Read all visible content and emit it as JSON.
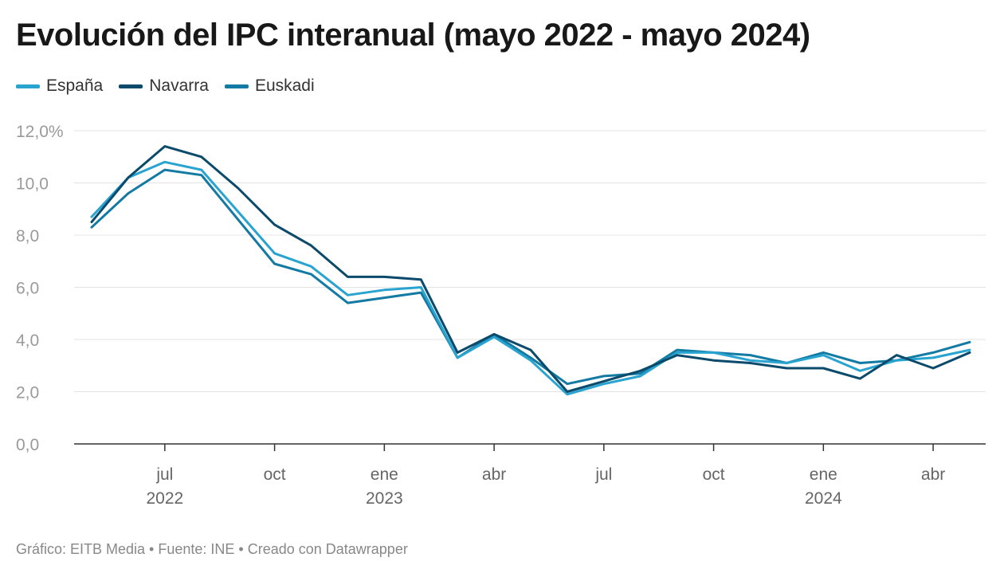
{
  "chart_data": {
    "type": "line",
    "title": "Evolución del IPC interanual (mayo 2022 - mayo 2024)",
    "xlabel": "",
    "ylabel": "",
    "ylim": [
      0,
      12
    ],
    "y_ticks": [
      "0,0",
      "2,0",
      "4,0",
      "6,0",
      "8,0",
      "10,0",
      "12,0%"
    ],
    "y_tick_values": [
      0,
      2,
      4,
      6,
      8,
      10,
      12
    ],
    "x": [
      "2022-05",
      "2022-06",
      "2022-07",
      "2022-08",
      "2022-09",
      "2022-10",
      "2022-11",
      "2022-12",
      "2023-01",
      "2023-02",
      "2023-03",
      "2023-04",
      "2023-05",
      "2023-06",
      "2023-07",
      "2023-08",
      "2023-09",
      "2023-10",
      "2023-11",
      "2023-12",
      "2024-01",
      "2024-02",
      "2024-03",
      "2024-04",
      "2024-05"
    ],
    "x_ticks": [
      {
        "index": 2,
        "label": "jul",
        "year": "2022"
      },
      {
        "index": 5,
        "label": "oct",
        "year": ""
      },
      {
        "index": 8,
        "label": "ene",
        "year": "2023"
      },
      {
        "index": 11,
        "label": "abr",
        "year": ""
      },
      {
        "index": 14,
        "label": "jul",
        "year": ""
      },
      {
        "index": 17,
        "label": "oct",
        "year": ""
      },
      {
        "index": 20,
        "label": "ene",
        "year": "2024"
      },
      {
        "index": 23,
        "label": "abr",
        "year": ""
      }
    ],
    "grid": true,
    "legend_position": "top-left",
    "series": [
      {
        "name": "España",
        "color": "#29a3cf",
        "values": [
          8.7,
          10.2,
          10.8,
          10.5,
          8.9,
          7.3,
          6.8,
          5.7,
          5.9,
          6.0,
          3.3,
          4.1,
          3.2,
          1.9,
          2.3,
          2.6,
          3.5,
          3.5,
          3.2,
          3.1,
          3.4,
          2.8,
          3.2,
          3.3,
          3.6
        ]
      },
      {
        "name": "Navarra",
        "color": "#0b4a6b",
        "values": [
          8.5,
          10.2,
          11.4,
          11.0,
          9.8,
          8.4,
          7.6,
          6.4,
          6.4,
          6.3,
          3.5,
          4.2,
          3.6,
          2.0,
          2.4,
          2.8,
          3.4,
          3.2,
          3.1,
          2.9,
          2.9,
          2.5,
          3.4,
          2.9,
          3.5
        ]
      },
      {
        "name": "Euskadi",
        "color": "#137aa3",
        "values": [
          8.3,
          9.6,
          10.5,
          10.3,
          8.6,
          6.9,
          6.5,
          5.4,
          5.6,
          5.8,
          3.3,
          4.2,
          3.3,
          2.3,
          2.6,
          2.7,
          3.6,
          3.5,
          3.4,
          3.1,
          3.5,
          3.1,
          3.2,
          3.5,
          3.9
        ]
      }
    ],
    "footer": "Gráfico: EITB Media • Fuente: INE • Creado con Datawrapper"
  }
}
